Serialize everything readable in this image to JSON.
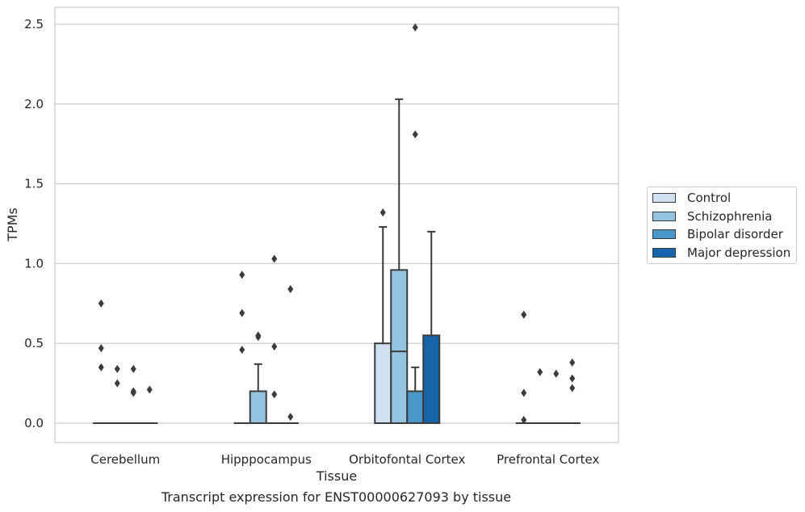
{
  "caption": "Transcript expression for ENST00000627093 by tissue",
  "chart_data": {
    "type": "box",
    "xlabel": "Tissue",
    "ylabel": "TPMs",
    "ylim": [
      -0.12,
      2.61
    ],
    "yticks": [
      0.0,
      0.5,
      1.0,
      1.5,
      2.0,
      2.5
    ],
    "ytick_labels": [
      "0.0",
      "0.5",
      "1.0",
      "1.5",
      "2.0",
      "2.5"
    ],
    "grid": "horizontal",
    "legend_position": "right",
    "categories": [
      "Cerebellum",
      "Hipppocampus",
      "Orbitofontal Cortex",
      "Prefrontal Cortex"
    ],
    "series": [
      {
        "name": "Control",
        "color": "#d0e1f2",
        "boxes": [
          {
            "q1": 0,
            "median": 0,
            "q3": 0,
            "whisker_low": 0,
            "whisker_high": 0,
            "outliers": [
              0.75,
              0.47,
              0.35
            ]
          },
          {
            "q1": 0,
            "median": 0,
            "q3": 0,
            "whisker_low": 0,
            "whisker_high": 0,
            "outliers": [
              0.93,
              0.69,
              0.46
            ]
          },
          {
            "q1": 0,
            "median": 0,
            "q3": 0.5,
            "whisker_low": 0,
            "whisker_high": 1.23,
            "outliers": [
              1.32
            ]
          },
          {
            "q1": 0,
            "median": 0,
            "q3": 0,
            "whisker_low": 0,
            "whisker_high": 0,
            "outliers": [
              0.68,
              0.19,
              0.02
            ]
          }
        ]
      },
      {
        "name": "Schizophrenia",
        "color": "#94c4df",
        "boxes": [
          {
            "q1": 0,
            "median": 0,
            "q3": 0,
            "whisker_low": 0,
            "whisker_high": 0,
            "outliers": [
              0.34,
              0.25
            ]
          },
          {
            "q1": 0,
            "median": 0,
            "q3": 0.2,
            "whisker_low": 0,
            "whisker_high": 0.37,
            "outliers": [
              0.55,
              0.54
            ]
          },
          {
            "q1": 0,
            "median": 0.45,
            "q3": 0.96,
            "whisker_low": 0,
            "whisker_high": 2.03,
            "outliers": []
          },
          {
            "q1": 0,
            "median": 0,
            "q3": 0,
            "whisker_low": 0,
            "whisker_high": 0,
            "outliers": [
              0.32
            ]
          }
        ]
      },
      {
        "name": "Bipolar disorder",
        "color": "#4a98c9",
        "boxes": [
          {
            "q1": 0,
            "median": 0,
            "q3": 0,
            "whisker_low": 0,
            "whisker_high": 0,
            "outliers": [
              0.34,
              0.2,
              0.19
            ]
          },
          {
            "q1": 0,
            "median": 0,
            "q3": 0,
            "whisker_low": 0,
            "whisker_high": 0,
            "outliers": [
              1.03,
              0.48,
              0.18
            ]
          },
          {
            "q1": 0,
            "median": 0,
            "q3": 0.2,
            "whisker_low": 0,
            "whisker_high": 0.35,
            "outliers": [
              2.48,
              1.81
            ]
          },
          {
            "q1": 0,
            "median": 0,
            "q3": 0,
            "whisker_low": 0,
            "whisker_high": 0,
            "outliers": [
              0.31
            ]
          }
        ]
      },
      {
        "name": "Major depression",
        "color": "#1764ab",
        "boxes": [
          {
            "q1": 0,
            "median": 0,
            "q3": 0,
            "whisker_low": 0,
            "whisker_high": 0,
            "outliers": [
              0.21
            ]
          },
          {
            "q1": 0,
            "median": 0,
            "q3": 0,
            "whisker_low": 0,
            "whisker_high": 0,
            "outliers": [
              0.84,
              0.04
            ]
          },
          {
            "q1": 0,
            "median": 0,
            "q3": 0.55,
            "whisker_low": 0,
            "whisker_high": 1.2,
            "outliers": []
          },
          {
            "q1": 0,
            "median": 0,
            "q3": 0,
            "whisker_low": 0,
            "whisker_high": 0,
            "outliers": [
              0.38,
              0.28,
              0.22
            ]
          }
        ]
      }
    ]
  }
}
